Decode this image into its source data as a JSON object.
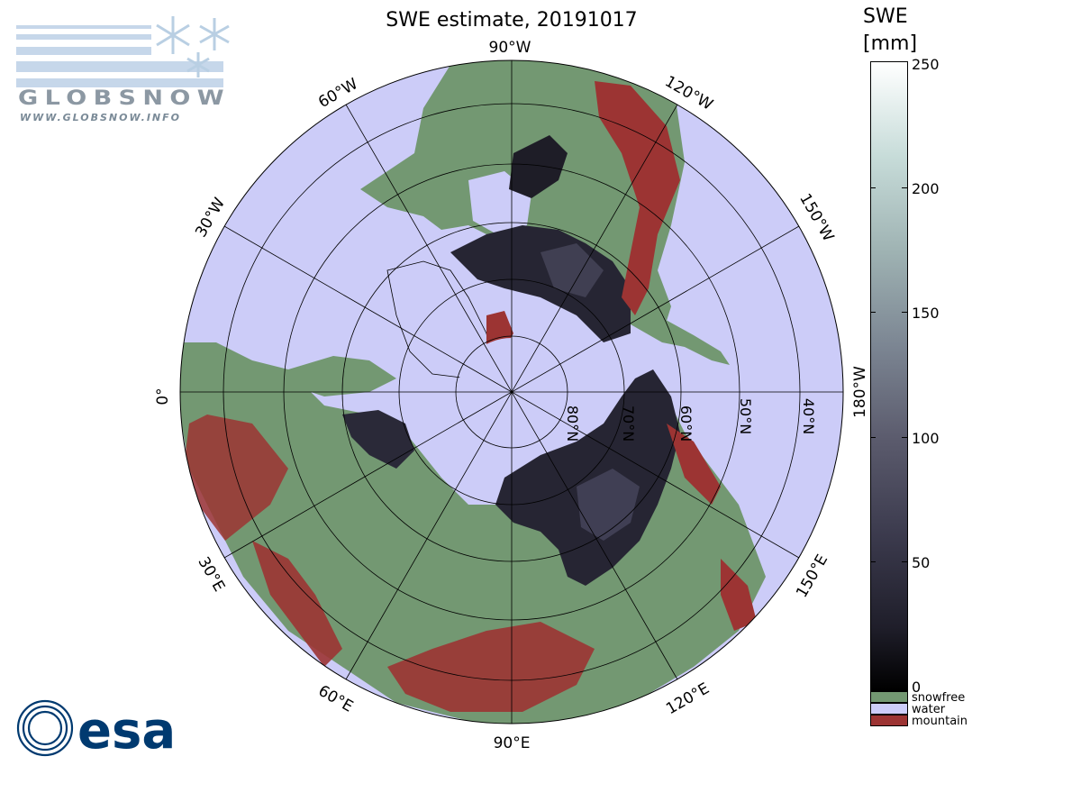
{
  "title": "SWE estimate, 20191017",
  "logos": {
    "globsnow_wordmark": "GLOBSNOW",
    "globsnow_url": "WWW.GLOBSNOW.INFO",
    "esa_wordmark": "esa"
  },
  "map": {
    "projection": "north polar stereographic",
    "longitude_labels": [
      {
        "text": "90°W",
        "lon": -90
      },
      {
        "text": "60°W",
        "lon": -60
      },
      {
        "text": "30°W",
        "lon": -30
      },
      {
        "text": "0°",
        "lon": 0
      },
      {
        "text": "30°E",
        "lon": 30
      },
      {
        "text": "60°E",
        "lon": 60
      },
      {
        "text": "90°E",
        "lon": 90
      },
      {
        "text": "120°E",
        "lon": 120
      },
      {
        "text": "150°E",
        "lon": 150
      },
      {
        "text": "180°W",
        "lon": 180
      },
      {
        "text": "150°W",
        "lon": -150
      },
      {
        "text": "120°W",
        "lon": -120
      }
    ],
    "latitude_labels": [
      {
        "text": "80°N",
        "lat": 80
      },
      {
        "text": "70°N",
        "lat": 70
      },
      {
        "text": "60°N",
        "lat": 60
      },
      {
        "text": "50°N",
        "lat": 50
      },
      {
        "text": "40°N",
        "lat": 40
      }
    ]
  },
  "colorbar": {
    "title_line1": "SWE",
    "title_line2": "[mm]",
    "min": 0,
    "max": 250,
    "ticks": [
      "250",
      "200",
      "150",
      "100",
      "50",
      "0"
    ],
    "categories": [
      {
        "label": "snowfree",
        "color": "#739872"
      },
      {
        "label": "water",
        "color": "#ccccf8"
      },
      {
        "label": "mountain",
        "color": "#9c3433"
      }
    ]
  },
  "colors": {
    "water": "#ccccf8",
    "snowfree": "#739872",
    "mountain": "#9c3433",
    "swe_low": "#1a1a24",
    "swe_mid": "#4a4a5e"
  }
}
